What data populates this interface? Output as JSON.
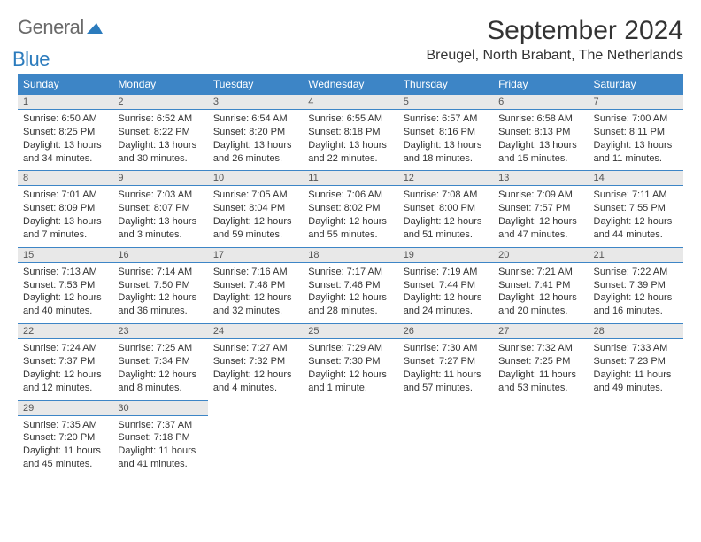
{
  "logo": {
    "general": "General",
    "blue": "Blue"
  },
  "title": "September 2024",
  "location": "Breugel, North Brabant, The Netherlands",
  "colors": {
    "header_bg": "#3d85c6",
    "header_text": "#ffffff",
    "daynum_bg": "#e8e8e8",
    "border": "#3d85c6",
    "text": "#333333",
    "logo_gray": "#6a6a6a",
    "logo_blue": "#2b7bbd"
  },
  "weekdays": [
    "Sunday",
    "Monday",
    "Tuesday",
    "Wednesday",
    "Thursday",
    "Friday",
    "Saturday"
  ],
  "weeks": [
    [
      {
        "n": "1",
        "sr": "Sunrise: 6:50 AM",
        "ss": "Sunset: 8:25 PM",
        "d1": "Daylight: 13 hours",
        "d2": "and 34 minutes."
      },
      {
        "n": "2",
        "sr": "Sunrise: 6:52 AM",
        "ss": "Sunset: 8:22 PM",
        "d1": "Daylight: 13 hours",
        "d2": "and 30 minutes."
      },
      {
        "n": "3",
        "sr": "Sunrise: 6:54 AM",
        "ss": "Sunset: 8:20 PM",
        "d1": "Daylight: 13 hours",
        "d2": "and 26 minutes."
      },
      {
        "n": "4",
        "sr": "Sunrise: 6:55 AM",
        "ss": "Sunset: 8:18 PM",
        "d1": "Daylight: 13 hours",
        "d2": "and 22 minutes."
      },
      {
        "n": "5",
        "sr": "Sunrise: 6:57 AM",
        "ss": "Sunset: 8:16 PM",
        "d1": "Daylight: 13 hours",
        "d2": "and 18 minutes."
      },
      {
        "n": "6",
        "sr": "Sunrise: 6:58 AM",
        "ss": "Sunset: 8:13 PM",
        "d1": "Daylight: 13 hours",
        "d2": "and 15 minutes."
      },
      {
        "n": "7",
        "sr": "Sunrise: 7:00 AM",
        "ss": "Sunset: 8:11 PM",
        "d1": "Daylight: 13 hours",
        "d2": "and 11 minutes."
      }
    ],
    [
      {
        "n": "8",
        "sr": "Sunrise: 7:01 AM",
        "ss": "Sunset: 8:09 PM",
        "d1": "Daylight: 13 hours",
        "d2": "and 7 minutes."
      },
      {
        "n": "9",
        "sr": "Sunrise: 7:03 AM",
        "ss": "Sunset: 8:07 PM",
        "d1": "Daylight: 13 hours",
        "d2": "and 3 minutes."
      },
      {
        "n": "10",
        "sr": "Sunrise: 7:05 AM",
        "ss": "Sunset: 8:04 PM",
        "d1": "Daylight: 12 hours",
        "d2": "and 59 minutes."
      },
      {
        "n": "11",
        "sr": "Sunrise: 7:06 AM",
        "ss": "Sunset: 8:02 PM",
        "d1": "Daylight: 12 hours",
        "d2": "and 55 minutes."
      },
      {
        "n": "12",
        "sr": "Sunrise: 7:08 AM",
        "ss": "Sunset: 8:00 PM",
        "d1": "Daylight: 12 hours",
        "d2": "and 51 minutes."
      },
      {
        "n": "13",
        "sr": "Sunrise: 7:09 AM",
        "ss": "Sunset: 7:57 PM",
        "d1": "Daylight: 12 hours",
        "d2": "and 47 minutes."
      },
      {
        "n": "14",
        "sr": "Sunrise: 7:11 AM",
        "ss": "Sunset: 7:55 PM",
        "d1": "Daylight: 12 hours",
        "d2": "and 44 minutes."
      }
    ],
    [
      {
        "n": "15",
        "sr": "Sunrise: 7:13 AM",
        "ss": "Sunset: 7:53 PM",
        "d1": "Daylight: 12 hours",
        "d2": "and 40 minutes."
      },
      {
        "n": "16",
        "sr": "Sunrise: 7:14 AM",
        "ss": "Sunset: 7:50 PM",
        "d1": "Daylight: 12 hours",
        "d2": "and 36 minutes."
      },
      {
        "n": "17",
        "sr": "Sunrise: 7:16 AM",
        "ss": "Sunset: 7:48 PM",
        "d1": "Daylight: 12 hours",
        "d2": "and 32 minutes."
      },
      {
        "n": "18",
        "sr": "Sunrise: 7:17 AM",
        "ss": "Sunset: 7:46 PM",
        "d1": "Daylight: 12 hours",
        "d2": "and 28 minutes."
      },
      {
        "n": "19",
        "sr": "Sunrise: 7:19 AM",
        "ss": "Sunset: 7:44 PM",
        "d1": "Daylight: 12 hours",
        "d2": "and 24 minutes."
      },
      {
        "n": "20",
        "sr": "Sunrise: 7:21 AM",
        "ss": "Sunset: 7:41 PM",
        "d1": "Daylight: 12 hours",
        "d2": "and 20 minutes."
      },
      {
        "n": "21",
        "sr": "Sunrise: 7:22 AM",
        "ss": "Sunset: 7:39 PM",
        "d1": "Daylight: 12 hours",
        "d2": "and 16 minutes."
      }
    ],
    [
      {
        "n": "22",
        "sr": "Sunrise: 7:24 AM",
        "ss": "Sunset: 7:37 PM",
        "d1": "Daylight: 12 hours",
        "d2": "and 12 minutes."
      },
      {
        "n": "23",
        "sr": "Sunrise: 7:25 AM",
        "ss": "Sunset: 7:34 PM",
        "d1": "Daylight: 12 hours",
        "d2": "and 8 minutes."
      },
      {
        "n": "24",
        "sr": "Sunrise: 7:27 AM",
        "ss": "Sunset: 7:32 PM",
        "d1": "Daylight: 12 hours",
        "d2": "and 4 minutes."
      },
      {
        "n": "25",
        "sr": "Sunrise: 7:29 AM",
        "ss": "Sunset: 7:30 PM",
        "d1": "Daylight: 12 hours",
        "d2": "and 1 minute."
      },
      {
        "n": "26",
        "sr": "Sunrise: 7:30 AM",
        "ss": "Sunset: 7:27 PM",
        "d1": "Daylight: 11 hours",
        "d2": "and 57 minutes."
      },
      {
        "n": "27",
        "sr": "Sunrise: 7:32 AM",
        "ss": "Sunset: 7:25 PM",
        "d1": "Daylight: 11 hours",
        "d2": "and 53 minutes."
      },
      {
        "n": "28",
        "sr": "Sunrise: 7:33 AM",
        "ss": "Sunset: 7:23 PM",
        "d1": "Daylight: 11 hours",
        "d2": "and 49 minutes."
      }
    ],
    [
      {
        "n": "29",
        "sr": "Sunrise: 7:35 AM",
        "ss": "Sunset: 7:20 PM",
        "d1": "Daylight: 11 hours",
        "d2": "and 45 minutes."
      },
      {
        "n": "30",
        "sr": "Sunrise: 7:37 AM",
        "ss": "Sunset: 7:18 PM",
        "d1": "Daylight: 11 hours",
        "d2": "and 41 minutes."
      },
      null,
      null,
      null,
      null,
      null
    ]
  ]
}
